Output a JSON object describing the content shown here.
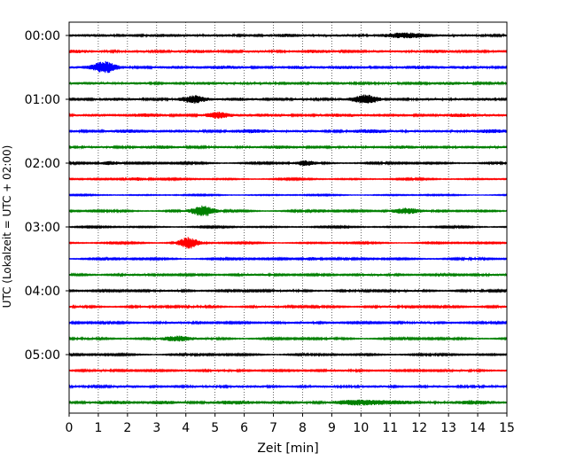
{
  "chart_data": {
    "type": "line",
    "title": "",
    "xlabel": "Zeit  [min]",
    "ylabel": "UTC (Lokalzeit = UTC + 02:00)",
    "xlim": [
      0,
      15
    ],
    "x_ticks": [
      0,
      1,
      2,
      3,
      4,
      5,
      6,
      7,
      8,
      9,
      10,
      11,
      12,
      13,
      14,
      15
    ],
    "y_tick_labels": [
      "00:00",
      "01:00",
      "02:00",
      "03:00",
      "04:00",
      "05:00"
    ],
    "y_tick_rows": [
      0,
      4,
      8,
      12,
      16,
      20
    ],
    "minutes_per_row": 15,
    "grid": "vertical dotted",
    "row_colors": [
      "#000000",
      "#ff0000",
      "#0000ff",
      "#008000"
    ],
    "series": [
      {
        "name": "00:00",
        "color": "#000000",
        "base_amp": 0.22,
        "events": [
          {
            "t": 11.5,
            "amp": 0.2,
            "width": 1.0
          }
        ]
      },
      {
        "name": "00:15",
        "color": "#ff0000",
        "base_amp": 0.22,
        "events": []
      },
      {
        "name": "00:30",
        "color": "#0000ff",
        "base_amp": 0.25,
        "events": [
          {
            "t": 1.2,
            "amp": 0.75,
            "width": 0.35
          }
        ]
      },
      {
        "name": "00:45",
        "color": "#008000",
        "base_amp": 0.2,
        "events": []
      },
      {
        "name": "01:00",
        "color": "#000000",
        "base_amp": 0.2,
        "events": [
          {
            "t": 4.3,
            "amp": 0.55,
            "width": 0.4
          },
          {
            "t": 10.2,
            "amp": 0.55,
            "width": 0.4
          }
        ]
      },
      {
        "name": "01:15",
        "color": "#ff0000",
        "base_amp": 0.25,
        "events": [
          {
            "t": 5.1,
            "amp": 0.35,
            "width": 0.3
          }
        ]
      },
      {
        "name": "01:30",
        "color": "#0000ff",
        "base_amp": 0.25,
        "events": []
      },
      {
        "name": "01:45",
        "color": "#008000",
        "base_amp": 0.22,
        "events": []
      },
      {
        "name": "02:00",
        "color": "#000000",
        "base_amp": 0.12,
        "events": [
          {
            "t": 1.4,
            "amp": 0.3,
            "width": 0.35
          },
          {
            "t": 8.1,
            "amp": 0.35,
            "width": 0.35
          }
        ]
      },
      {
        "name": "02:15",
        "color": "#ff0000",
        "base_amp": 0.1,
        "events": [
          {
            "t": 2.3,
            "amp": 0.25,
            "width": 0.4
          }
        ]
      },
      {
        "name": "02:30",
        "color": "#0000ff",
        "base_amp": 0.08,
        "events": []
      },
      {
        "name": "02:45",
        "color": "#008000",
        "base_amp": 0.12,
        "events": [
          {
            "t": 4.6,
            "amp": 0.8,
            "width": 0.4
          },
          {
            "t": 11.5,
            "amp": 0.45,
            "width": 0.5
          }
        ]
      },
      {
        "name": "03:00",
        "color": "#000000",
        "base_amp": 0.1,
        "events": []
      },
      {
        "name": "03:15",
        "color": "#ff0000",
        "base_amp": 0.1,
        "events": [
          {
            "t": 4.1,
            "amp": 0.9,
            "width": 0.35
          }
        ]
      },
      {
        "name": "03:30",
        "color": "#0000ff",
        "base_amp": 0.12,
        "events": [
          {
            "t": 8.3,
            "amp": 0.25,
            "width": 0.3
          }
        ]
      },
      {
        "name": "03:45",
        "color": "#008000",
        "base_amp": 0.15,
        "events": []
      },
      {
        "name": "04:00",
        "color": "#000000",
        "base_amp": 0.15,
        "events": []
      },
      {
        "name": "04:15",
        "color": "#ff0000",
        "base_amp": 0.15,
        "events": []
      },
      {
        "name": "04:30",
        "color": "#0000ff",
        "base_amp": 0.15,
        "events": []
      },
      {
        "name": "04:45",
        "color": "#008000",
        "base_amp": 0.13,
        "events": [
          {
            "t": 3.7,
            "amp": 0.4,
            "width": 0.5
          }
        ]
      },
      {
        "name": "05:00",
        "color": "#000000",
        "base_amp": 0.12,
        "events": []
      },
      {
        "name": "05:15",
        "color": "#ff0000",
        "base_amp": 0.14,
        "events": []
      },
      {
        "name": "05:30",
        "color": "#0000ff",
        "base_amp": 0.18,
        "events": []
      },
      {
        "name": "05:45",
        "color": "#008000",
        "base_amp": 0.28,
        "events": [
          {
            "t": 10.5,
            "amp": 0.2,
            "width": 1.0
          }
        ]
      }
    ]
  }
}
